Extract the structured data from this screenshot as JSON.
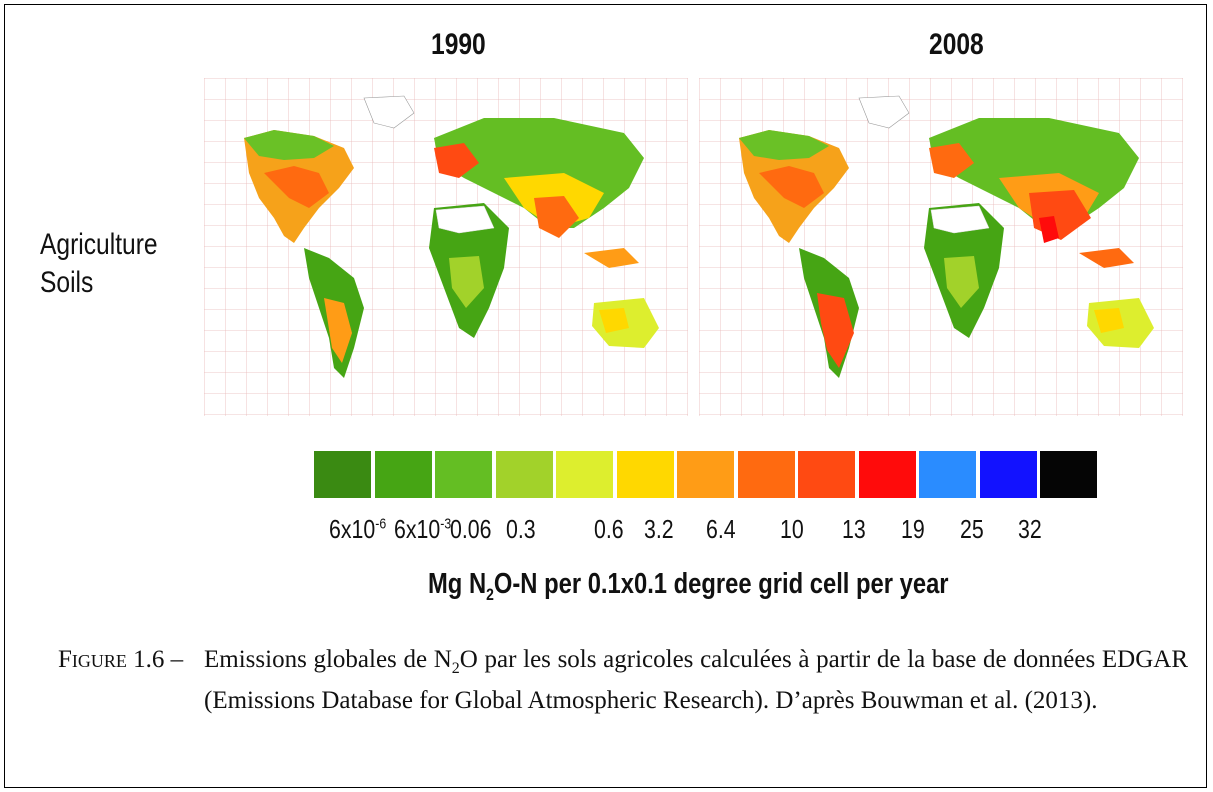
{
  "figure": {
    "years": [
      "1990",
      "2008"
    ],
    "row_label_line1": "Agriculture",
    "row_label_line2": "Soils",
    "legend": {
      "colors": [
        "#3a8a12",
        "#46a514",
        "#64be23",
        "#a2d22a",
        "#ddee2e",
        "#ffd800",
        "#ff9c16",
        "#ff6a10",
        "#ff4a12",
        "#ff0b0b",
        "#2a8cff",
        "#1212ff",
        "#050505"
      ],
      "ticks": [
        {
          "base": "6x10",
          "exp": "-6"
        },
        {
          "base": "6x10",
          "exp": "-3"
        },
        {
          "base": "0.06",
          "exp": ""
        },
        {
          "base": "0.3",
          "exp": ""
        },
        {
          "base": "0.6",
          "exp": ""
        },
        {
          "base": "3.2",
          "exp": ""
        },
        {
          "base": "6.4",
          "exp": ""
        },
        {
          "base": "10",
          "exp": ""
        },
        {
          "base": "13",
          "exp": ""
        },
        {
          "base": "19",
          "exp": ""
        },
        {
          "base": "25",
          "exp": ""
        },
        {
          "base": "32",
          "exp": ""
        }
      ],
      "unit_part1": "Mg N",
      "unit_sub": "2",
      "unit_part2": "O-N per 0.1x0.1 degree grid cell per year"
    }
  },
  "caption": {
    "label": "Figure 1.6 –",
    "text_part1": "Emissions globales de N",
    "text_sub": "2",
    "text_part2": "O par les sols agricoles calculées à partir de la base de données EDGAR (Emissions Database for Global Atmospheric Research). D’après Bouwman et al. (2013)."
  }
}
